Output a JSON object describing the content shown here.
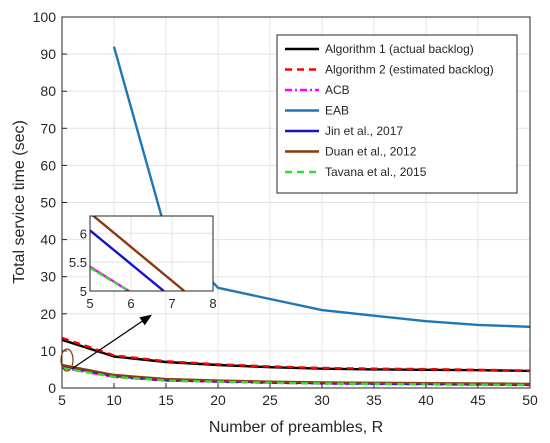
{
  "chart_data": {
    "type": "line",
    "title": "",
    "xlabel": "Number of preambles, R",
    "ylabel": "Total service time (sec)",
    "xlim": [
      5,
      50
    ],
    "ylim": [
      0,
      100
    ],
    "xticks": [
      5,
      10,
      15,
      20,
      25,
      30,
      35,
      40,
      45,
      50
    ],
    "yticks": [
      0,
      10,
      20,
      30,
      40,
      50,
      60,
      70,
      80,
      90,
      100
    ],
    "grid": true,
    "legend_position": "top-right",
    "series": [
      {
        "name": "Algorithm 1 (actual backlog)",
        "color": "#000000",
        "dash": "solid",
        "x": [
          5,
          10,
          15,
          20,
          25,
          30,
          35,
          40,
          45,
          50
        ],
        "y": [
          13.0,
          8.5,
          7.0,
          6.2,
          5.6,
          5.2,
          5.0,
          4.9,
          4.8,
          4.6
        ]
      },
      {
        "name": "Algorithm 2 (estimated backlog)",
        "color": "#ff0000",
        "dash": "dashed",
        "x": [
          5,
          10,
          15,
          20,
          25,
          30,
          35,
          40,
          45,
          50
        ],
        "y": [
          13.5,
          8.8,
          7.2,
          6.4,
          5.8,
          5.4,
          5.2,
          5.1,
          4.9,
          4.7
        ]
      },
      {
        "name": "ACB",
        "color": "#ff00ff",
        "dash": "dashdot",
        "x": [
          5,
          10,
          15,
          20,
          25,
          30,
          35,
          40,
          45,
          50
        ],
        "y": [
          5.5,
          3.0,
          2.0,
          1.7,
          1.4,
          1.2,
          1.1,
          1.0,
          0.9,
          0.8
        ]
      },
      {
        "name": "EAB",
        "color": "#1f77b4",
        "dash": "solid",
        "x": [
          10,
          15,
          20,
          25,
          30,
          35,
          40,
          45,
          50
        ],
        "y": [
          92,
          42,
          27,
          24,
          21,
          19.5,
          18,
          17,
          16.5
        ]
      },
      {
        "name": "Jin et al., 2017",
        "color": "#1515c8",
        "dash": "solid",
        "x": [
          5,
          10,
          15,
          20,
          25,
          30,
          35,
          40,
          45,
          50
        ],
        "y": [
          6.0,
          3.2,
          2.1,
          1.8,
          1.5,
          1.3,
          1.2,
          1.1,
          1.0,
          0.9
        ]
      },
      {
        "name": " Duan et al., 2012",
        "color": "#8b3a0f",
        "dash": "solid",
        "x": [
          5,
          10,
          15,
          20,
          25,
          30,
          35,
          40,
          45,
          50
        ],
        "y": [
          6.2,
          3.5,
          2.4,
          2.0,
          1.7,
          1.5,
          1.4,
          1.3,
          1.2,
          1.1
        ]
      },
      {
        "name": "Tavana et al., 2015",
        "color": "#33dd33",
        "dash": "dashed",
        "x": [
          5,
          10,
          15,
          20,
          25,
          30,
          35,
          40,
          45,
          50
        ],
        "y": [
          5.4,
          3.0,
          2.0,
          1.7,
          1.4,
          1.2,
          1.1,
          1.0,
          0.9,
          0.8
        ]
      }
    ],
    "inset": {
      "xlim": [
        5,
        8
      ],
      "ylim": [
        5,
        6.3
      ],
      "xticks": [
        5,
        6,
        7,
        8
      ],
      "yticks": [
        5,
        5.5,
        6
      ],
      "ytick_labels": [
        "5",
        "5.5",
        "6"
      ],
      "series": [
        {
          "name": " Duan et al., 2012",
          "color": "#8b3a0f",
          "x": [
            5,
            7.3
          ],
          "y": [
            6.35,
            5.0
          ]
        },
        {
          "name": "Jin et al., 2017",
          "color": "#1515c8",
          "x": [
            5,
            6.8
          ],
          "y": [
            6.05,
            5.0
          ]
        },
        {
          "name": "ACB",
          "color": "#ff00ff",
          "x": [
            5,
            5.95
          ],
          "y": [
            5.42,
            5.0
          ]
        },
        {
          "name": "Tavana et al., 2015",
          "color": "#33dd33",
          "x": [
            5,
            5.95
          ],
          "y": [
            5.4,
            5.0
          ]
        }
      ]
    }
  }
}
